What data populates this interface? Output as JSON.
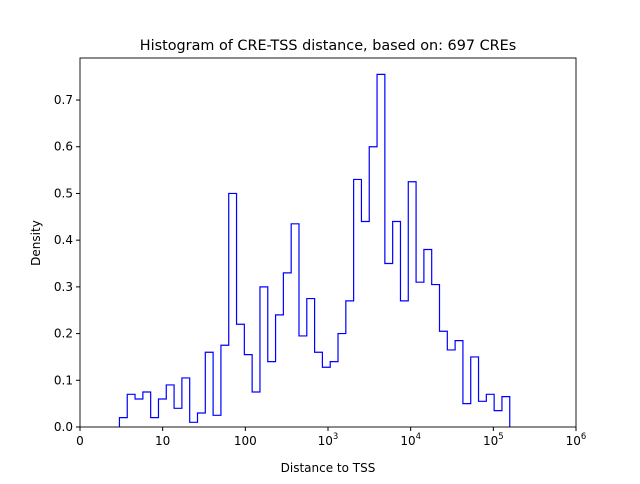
{
  "chart_data": {
    "type": "histogram",
    "title": "Histogram of CRE-TSS distance, based on: 697 CREs",
    "xlabel": "Distance to TSS",
    "ylabel": "Density",
    "xscale": "log",
    "xlim": [
      1,
      1000000
    ],
    "ylim": [
      0,
      0.79
    ],
    "grid": false,
    "histtype": "step",
    "color": "#0000ff",
    "x_ticks": [
      {
        "value": 1,
        "label": "0"
      },
      {
        "value": 10,
        "label": "10"
      },
      {
        "value": 100,
        "label": "100"
      },
      {
        "value": 1000,
        "label": "10",
        "exp": "3"
      },
      {
        "value": 10000,
        "label": "10",
        "exp": "4"
      },
      {
        "value": 100000,
        "label": "10",
        "exp": "5"
      },
      {
        "value": 1000000,
        "label": "10",
        "exp": "6"
      }
    ],
    "y_ticks": [
      "0.0",
      "0.1",
      "0.2",
      "0.3",
      "0.4",
      "0.5",
      "0.6",
      "0.7"
    ],
    "bin_range": [
      3,
      158000
    ],
    "densities": [
      0.02,
      0.07,
      0.06,
      0.075,
      0.02,
      0.06,
      0.09,
      0.04,
      0.105,
      0.01,
      0.03,
      0.16,
      0.025,
      0.175,
      0.5,
      0.22,
      0.155,
      0.075,
      0.3,
      0.14,
      0.24,
      0.33,
      0.435,
      0.195,
      0.275,
      0.16,
      0.128,
      0.14,
      0.2,
      0.27,
      0.53,
      0.44,
      0.6,
      0.755,
      0.35,
      0.44,
      0.27,
      0.525,
      0.31,
      0.38,
      0.305,
      0.205,
      0.165,
      0.185,
      0.05,
      0.15,
      0.055,
      0.07,
      0.035,
      0.065
    ]
  }
}
